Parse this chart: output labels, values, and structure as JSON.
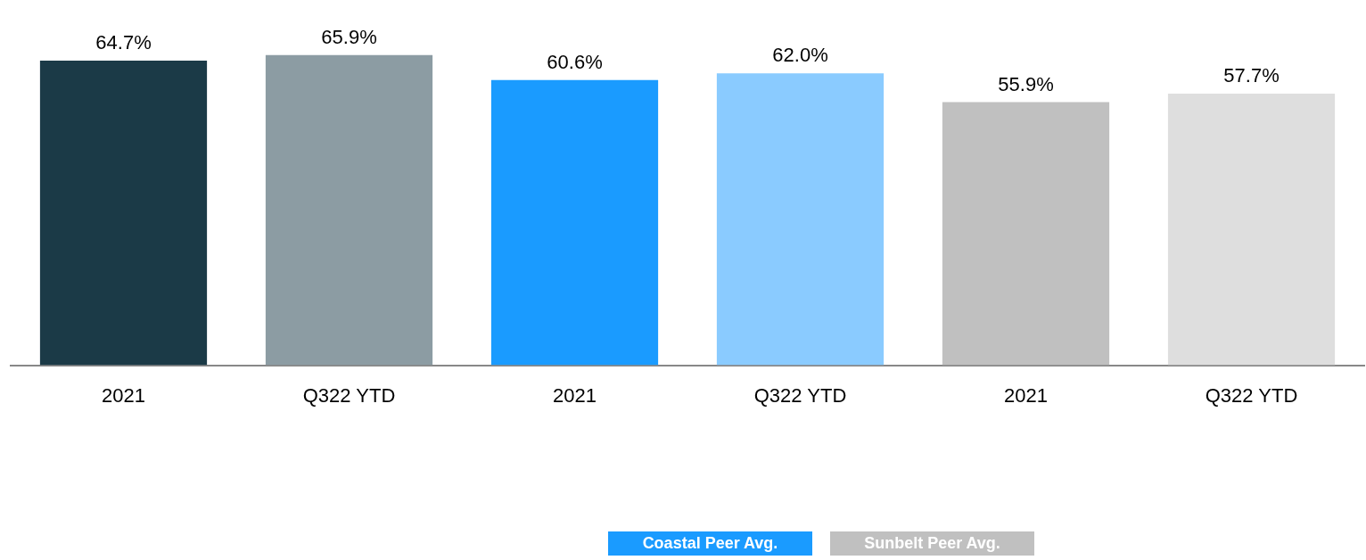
{
  "chart_data": {
    "type": "bar",
    "categories": [
      "2021",
      "Q322 YTD",
      "2021",
      "Q322 YTD",
      "2021",
      "Q322 YTD"
    ],
    "series": [
      {
        "colors": [
          "#1b3a47",
          "#8c9ca3",
          null,
          null,
          null,
          null
        ],
        "values": [
          64.7,
          65.9,
          null,
          null,
          null,
          null
        ],
        "value_labels": [
          "64.7%",
          "65.9%",
          null,
          null,
          null,
          null
        ]
      },
      {
        "name": "Coastal Peer Avg.",
        "colors": [
          null,
          null,
          "#1a9bff",
          "#8acbff",
          null,
          null
        ],
        "values": [
          null,
          null,
          60.6,
          62.0,
          null,
          null
        ],
        "value_labels": [
          null,
          null,
          "60.6%",
          "62.0%",
          null,
          null
        ]
      },
      {
        "name": "Sunbelt Peer Avg.",
        "colors": [
          null,
          null,
          null,
          null,
          "#c0c0c0",
          "#dedede"
        ],
        "values": [
          null,
          null,
          null,
          null,
          55.9,
          57.7
        ],
        "value_labels": [
          null,
          null,
          null,
          null,
          "55.9%",
          "57.7%"
        ]
      }
    ],
    "grid": false,
    "legend": "bottom"
  }
}
